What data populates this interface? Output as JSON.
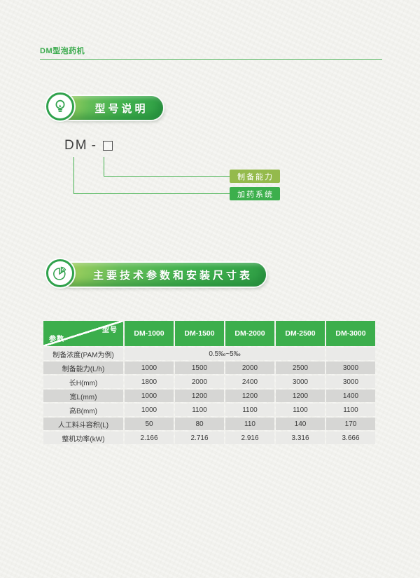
{
  "header": {
    "title": "DM型泡药机"
  },
  "sections": {
    "model": {
      "title": "型号说明",
      "icon": "lightbulb-icon"
    },
    "specs": {
      "title": "主要技术参数和安装尺寸表",
      "icon": "pie-chart-icon"
    }
  },
  "diagram": {
    "model_prefix": "DM",
    "separator": "-",
    "labels": [
      {
        "text": "制备能力"
      },
      {
        "text": "加药系统"
      }
    ]
  },
  "table": {
    "corner_top": "型号",
    "corner_bottom": "参数",
    "columns": [
      "DM-1000",
      "DM-1500",
      "DM-2000",
      "DM-2500",
      "DM-3000"
    ],
    "rows": [
      {
        "label": "制备浓度(PAM为例)",
        "cells": [
          {
            "text": "0.5‰~5‰",
            "span": 4
          },
          {
            "text": "",
            "span": 1
          }
        ]
      },
      {
        "label": "制备能力(L/h)",
        "cells": [
          {
            "text": "1000"
          },
          {
            "text": "1500"
          },
          {
            "text": "2000"
          },
          {
            "text": "2500"
          },
          {
            "text": "3000"
          }
        ]
      },
      {
        "label": "长H(mm)",
        "cells": [
          {
            "text": "1800"
          },
          {
            "text": "2000"
          },
          {
            "text": "2400"
          },
          {
            "text": "3000"
          },
          {
            "text": "3000"
          }
        ]
      },
      {
        "label": "宽L(mm)",
        "cells": [
          {
            "text": "1000"
          },
          {
            "text": "1200"
          },
          {
            "text": "1200"
          },
          {
            "text": "1200"
          },
          {
            "text": "1400"
          }
        ]
      },
      {
        "label": "高B(mm)",
        "cells": [
          {
            "text": "1000"
          },
          {
            "text": "1100"
          },
          {
            "text": "1100"
          },
          {
            "text": "1100"
          },
          {
            "text": "1100"
          }
        ]
      },
      {
        "label": "人工料斗容积(L)",
        "cells": [
          {
            "text": "50"
          },
          {
            "text": "80"
          },
          {
            "text": "110"
          },
          {
            "text": "140"
          },
          {
            "text": "170"
          }
        ]
      },
      {
        "label": "整机功率(kW)",
        "cells": [
          {
            "text": "2.166"
          },
          {
            "text": "2.716"
          },
          {
            "text": "2.916"
          },
          {
            "text": "3.316"
          },
          {
            "text": "3.666"
          }
        ]
      }
    ]
  },
  "colors": {
    "brand_green": "#3CAE4C",
    "banner_gradient_light": "#A9D25E",
    "banner_gradient_dark": "#2F9E45",
    "olive_tag": "#94BA4C",
    "green_tag": "#3CAF4C",
    "row_light": "#EAEAE8",
    "row_dark": "#D6D6D4",
    "paper": "#F1F1ED"
  }
}
